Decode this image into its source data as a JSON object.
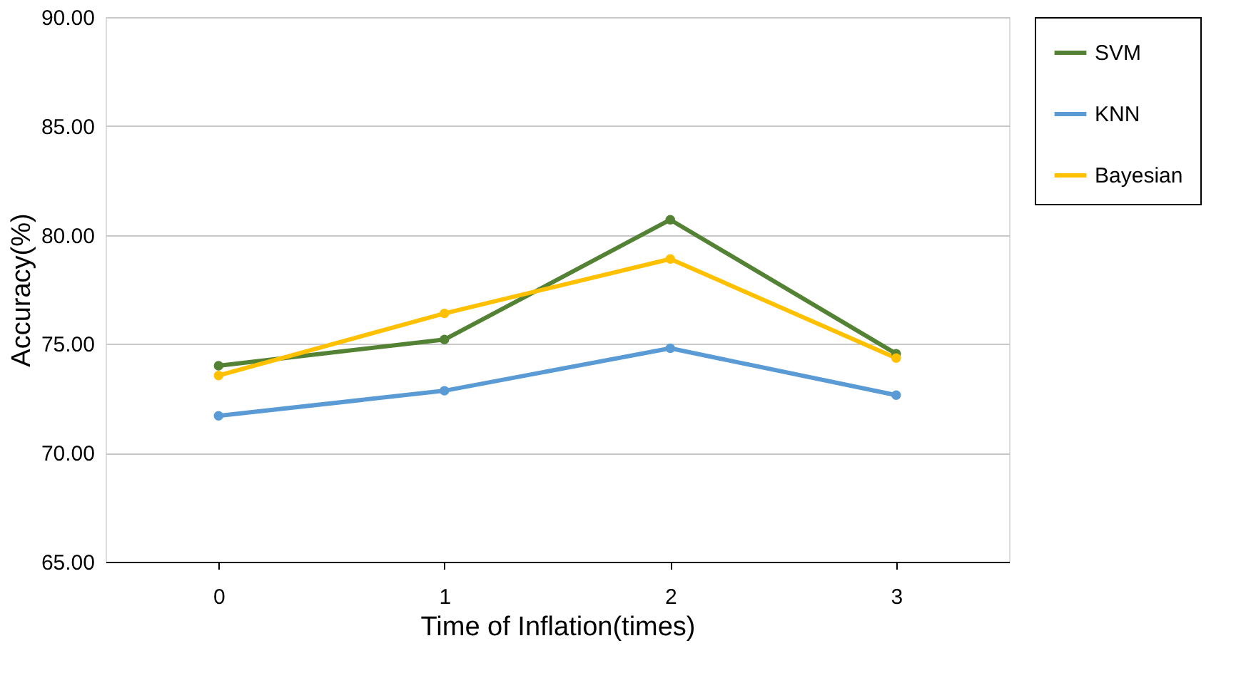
{
  "chart_data": {
    "type": "line",
    "xlabel": "Time of Inflation(times)",
    "ylabel": "Accuracy(%)",
    "categories": [
      "0",
      "1",
      "2",
      "3"
    ],
    "series": [
      {
        "name": "SVM",
        "color": "#548235",
        "values": [
          74.0,
          75.2,
          80.7,
          74.55
        ]
      },
      {
        "name": "KNN",
        "color": "#5b9bd5",
        "values": [
          71.7,
          72.85,
          74.8,
          72.65
        ]
      },
      {
        "name": "Bayesian",
        "color": "#ffc000",
        "values": [
          73.55,
          76.4,
          78.9,
          74.35
        ]
      }
    ],
    "ylim": [
      65,
      90
    ],
    "yticks": [
      {
        "value": 65,
        "label": "65.00"
      },
      {
        "value": 70,
        "label": "70.00"
      },
      {
        "value": 75,
        "label": "75.00"
      },
      {
        "value": 80,
        "label": "80.00"
      },
      {
        "value": 85,
        "label": "85.00"
      },
      {
        "value": 90,
        "label": "90.00"
      }
    ],
    "grid": "y",
    "legend": "top right",
    "marker": "circle",
    "line_style": "solid"
  }
}
